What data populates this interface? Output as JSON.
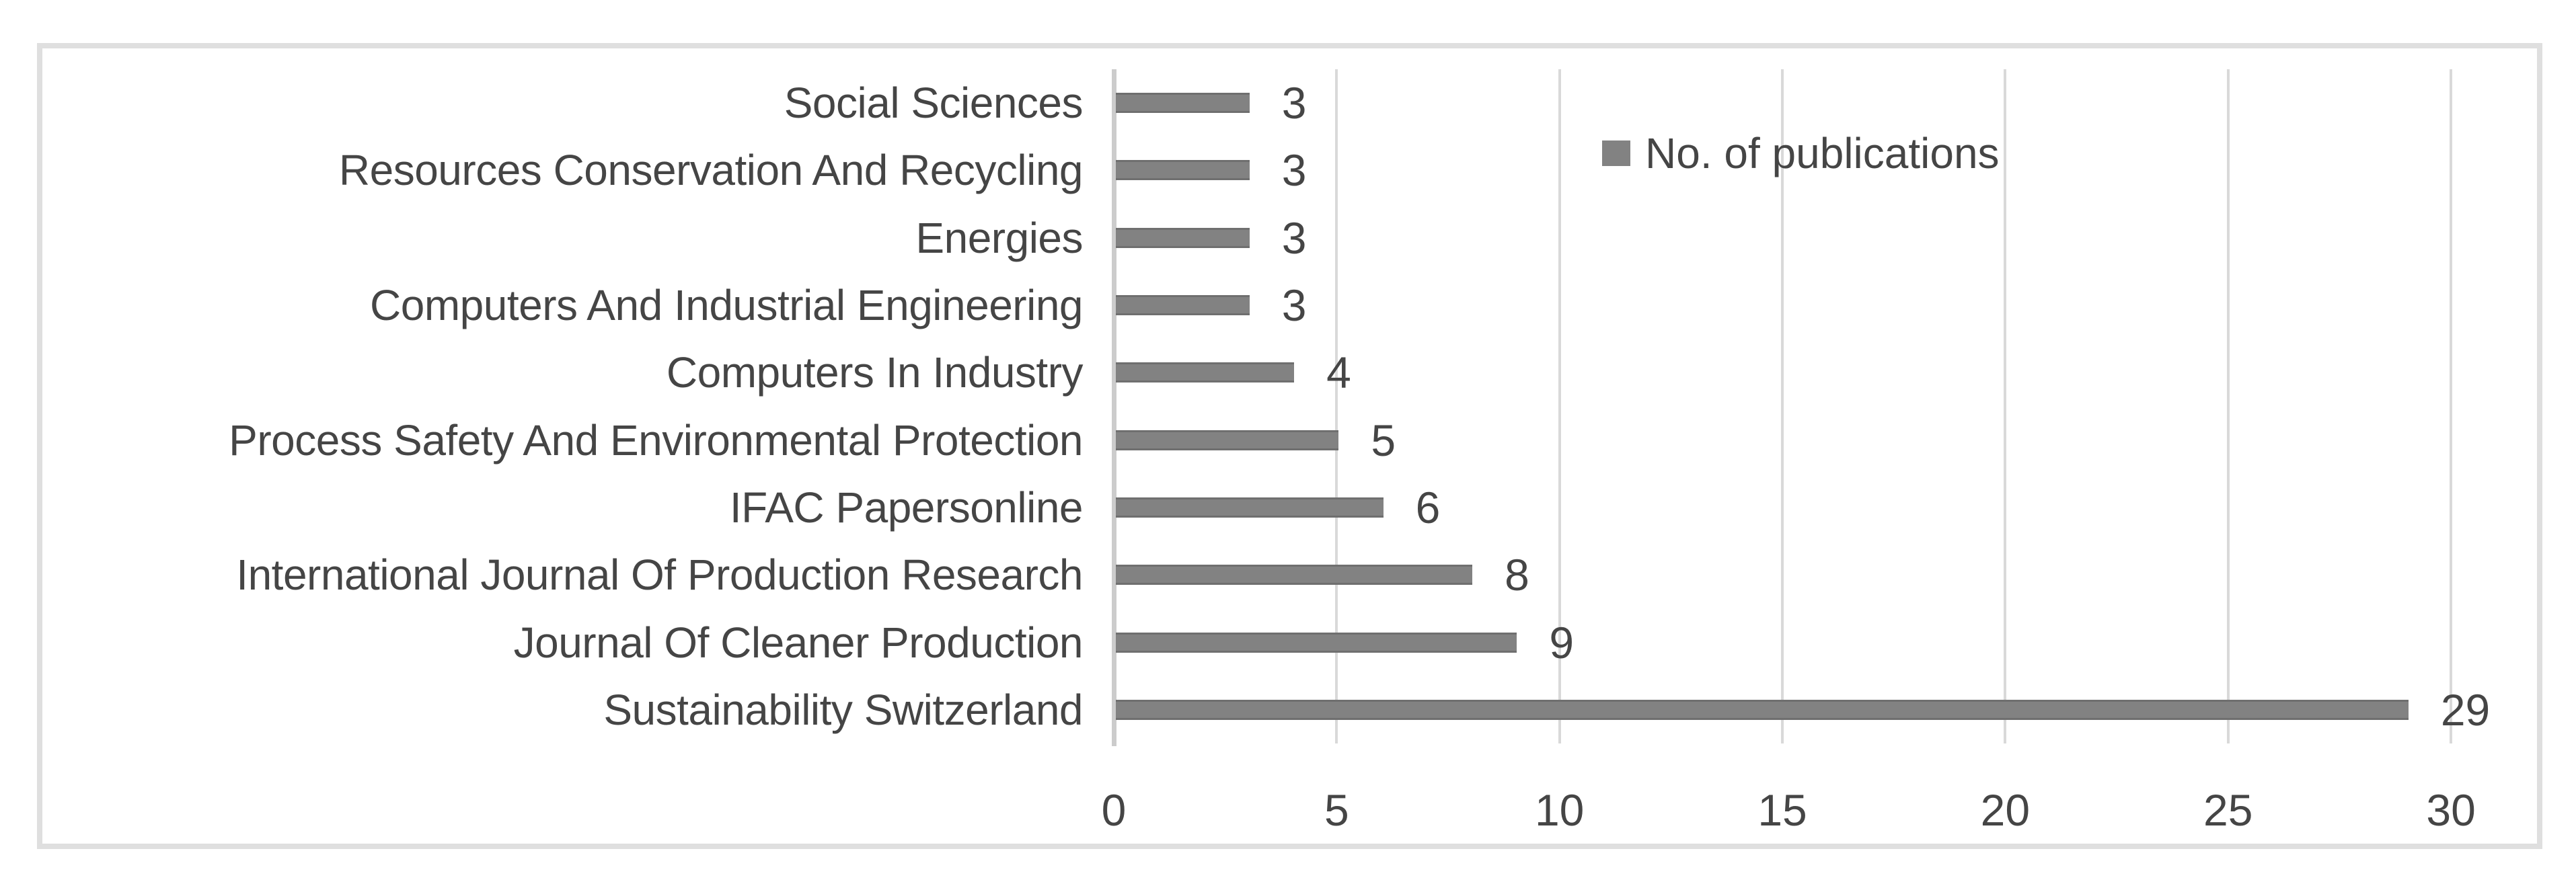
{
  "chart_data": {
    "type": "bar",
    "orientation": "horizontal",
    "title": "",
    "legend": "No. of publications",
    "legend_position": "inside-top-right",
    "categories": [
      "Social Sciences",
      "Resources Conservation And Recycling",
      "Energies",
      "Computers And Industrial Engineering",
      "Computers In Industry",
      "Process Safety And Environmental Protection",
      "IFAC Papersonline",
      "International Journal Of Production Research",
      "Journal Of Cleaner Production",
      "Sustainability Switzerland"
    ],
    "values": [
      3,
      3,
      3,
      3,
      4,
      5,
      6,
      8,
      9,
      29
    ],
    "data_labels_shown": true,
    "xlabel": "",
    "ylabel": "",
    "xlim": [
      0,
      30
    ],
    "x_ticks": [
      0,
      5,
      10,
      15,
      20,
      25,
      30
    ],
    "grid": "vertical",
    "colors": {
      "bar": "#828282",
      "gridline": "#d9d9d9",
      "axis_line": "#cccccc",
      "text": "#454545",
      "frame_border": "#dfdfdf",
      "background": "#ffffff"
    }
  }
}
